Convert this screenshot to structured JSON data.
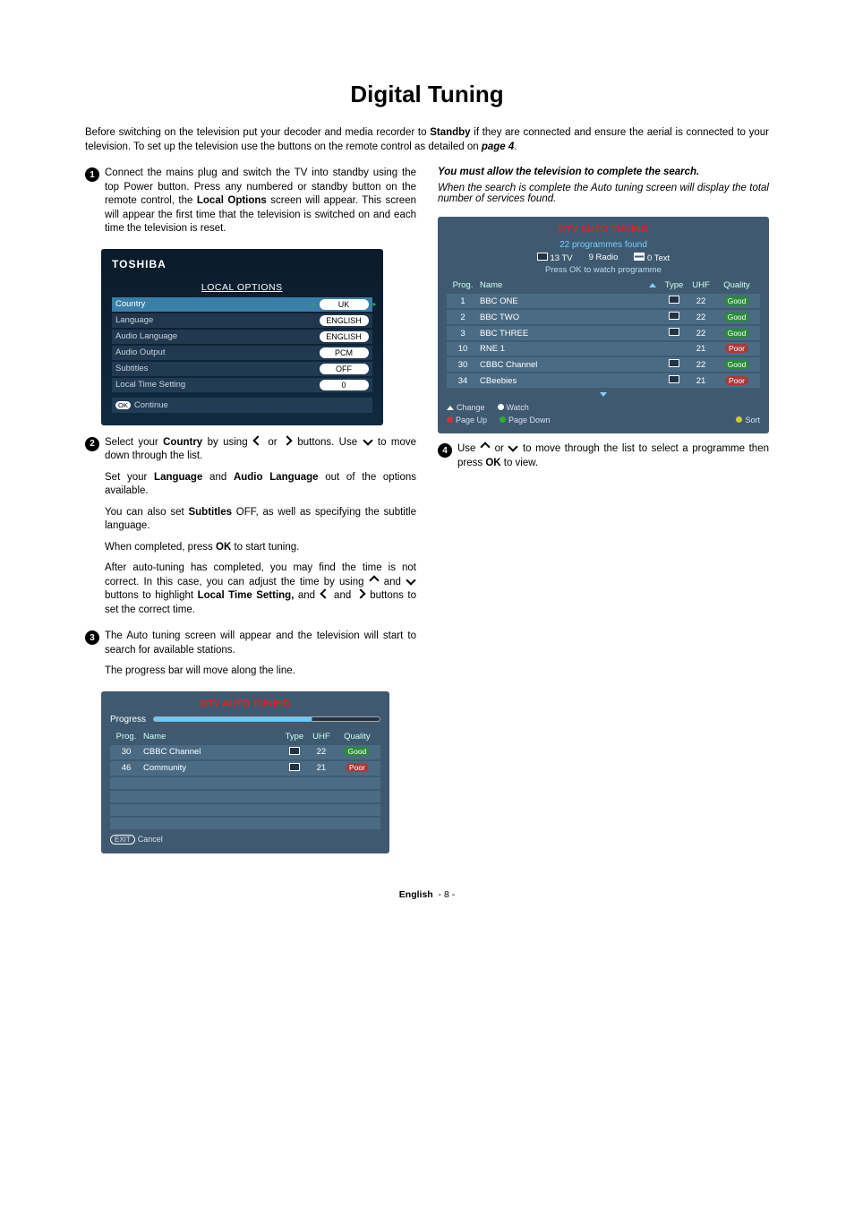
{
  "title": "Digital Tuning",
  "intro_pre": "Before switching on the television put your decoder and media recorder to ",
  "intro_bold1": "Standby",
  "intro_mid": " if they are connected and ensure the aerial is connected to your television. To set up the television use the buttons on the remote control as detailed on ",
  "intro_bold2": "page 4",
  "step1": {
    "p1_pre": "Connect the mains plug and switch the TV into standby using the top Power button. Press any numbered or standby button on the remote control, the ",
    "p1_b": "Local Options",
    "p1_post": " screen will appear. This screen will appear the first time that the television is switched on and each time the television is reset."
  },
  "local_options": {
    "brand": "TOSHIBA",
    "header": "LOCAL OPTIONS",
    "rows": [
      {
        "label": "Country",
        "value": "UK",
        "selected": true,
        "arrows": true
      },
      {
        "label": "Language",
        "value": "ENGLISH"
      },
      {
        "label": "Audio Language",
        "value": "ENGLISH"
      },
      {
        "label": "Audio Output",
        "value": "PCM"
      },
      {
        "label": "Subtitles",
        "value": "OFF"
      },
      {
        "label": "Local Time Setting",
        "value": "0"
      }
    ],
    "continue": "Continue",
    "ok": "OK"
  },
  "step2": {
    "p1_a": "Select your ",
    "p1_b": "Country",
    "p1_c": " by using ",
    "p1_d": " or ",
    "p1_e": " buttons. Use ",
    "p1_f": " to move down through the list.",
    "p2_a": "Set your ",
    "p2_b": "Language",
    "p2_c": " and ",
    "p2_d": "Audio Language",
    "p2_e": " out of the options available.",
    "p3_a": "You can also set ",
    "p3_b": "Subtitles",
    "p3_c": " OFF, as well as specifying the subtitle language.",
    "p4_a": "When completed, press ",
    "p4_b": "OK",
    "p4_c": " to start tuning.",
    "p5_a": "After auto-tuning has completed, you may find the time is not correct. In this case, you can adjust the time by using ",
    "p5_b": " and ",
    "p5_c": " buttons to highlight ",
    "p5_d": "Local Time Setting,",
    "p5_e": " and ",
    "p5_f": " and ",
    "p5_g": " buttons to set the correct time."
  },
  "step3": {
    "p1": "The Auto tuning screen will appear and the television will start to search for available stations.",
    "p2": "The progress bar will move along the line."
  },
  "dtv_progress": {
    "title": "DTV AUTO TUNING",
    "progress": "Progress",
    "head": {
      "prog": "Prog.",
      "name": "Name",
      "type": "Type",
      "uhf": "UHF",
      "qual": "Quality"
    },
    "rows": [
      {
        "prog": "30",
        "name": "CBBC Channel",
        "uhf": "22",
        "qual": "Good",
        "qclass": "q-good",
        "icon": true
      },
      {
        "prog": "46",
        "name": "Community",
        "uhf": "21",
        "qual": "Poor",
        "qclass": "q-poor",
        "icon": true
      }
    ],
    "exit": "Cancel",
    "exit_pill": "EXIT"
  },
  "right_top": {
    "l1": "You must allow the television to complete the search.",
    "l2": "When the search is complete the Auto tuning screen will display the total number of services found."
  },
  "dtv_result": {
    "title": "DTV AUTO TUNING",
    "found": "22 programmes found",
    "tv": "13 TV",
    "radio": "9 Radio",
    "text": "0  Text",
    "press": "Press OK to watch programme",
    "head": {
      "prog": "Prog.",
      "name": "Name",
      "type": "Type",
      "uhf": "UHF",
      "qual": "Quality"
    },
    "rows": [
      {
        "prog": "1",
        "name": "BBC ONE",
        "uhf": "22",
        "qual": "Good",
        "qclass": "q-good",
        "icon": true
      },
      {
        "prog": "2",
        "name": "BBC TWO",
        "uhf": "22",
        "qual": "Good",
        "qclass": "q-good",
        "icon": true
      },
      {
        "prog": "3",
        "name": "BBC THREE",
        "uhf": "22",
        "qual": "Good",
        "qclass": "q-good",
        "icon": true
      },
      {
        "prog": "10",
        "name": "RNE 1",
        "uhf": "21",
        "qual": "Poor",
        "qclass": "q-poor",
        "icon": false
      },
      {
        "prog": "30",
        "name": "CBBC Channel",
        "uhf": "22",
        "qual": "Good",
        "qclass": "q-good",
        "icon": true
      },
      {
        "prog": "34",
        "name": "CBeebies",
        "uhf": "21",
        "qual": "Poor",
        "qclass": "q-poor",
        "icon": true
      }
    ],
    "foot": {
      "change": "Change",
      "watch": "Watch",
      "pageup": "Page Up",
      "pagedown": "Page Down",
      "sort": "Sort"
    }
  },
  "step4": {
    "a": "Use ",
    "b": " or ",
    "c": " to move through the list to select a programme then press ",
    "d": "OK",
    "e": " to view."
  },
  "footer_lang": "English",
  "footer_page": "- 8 -"
}
